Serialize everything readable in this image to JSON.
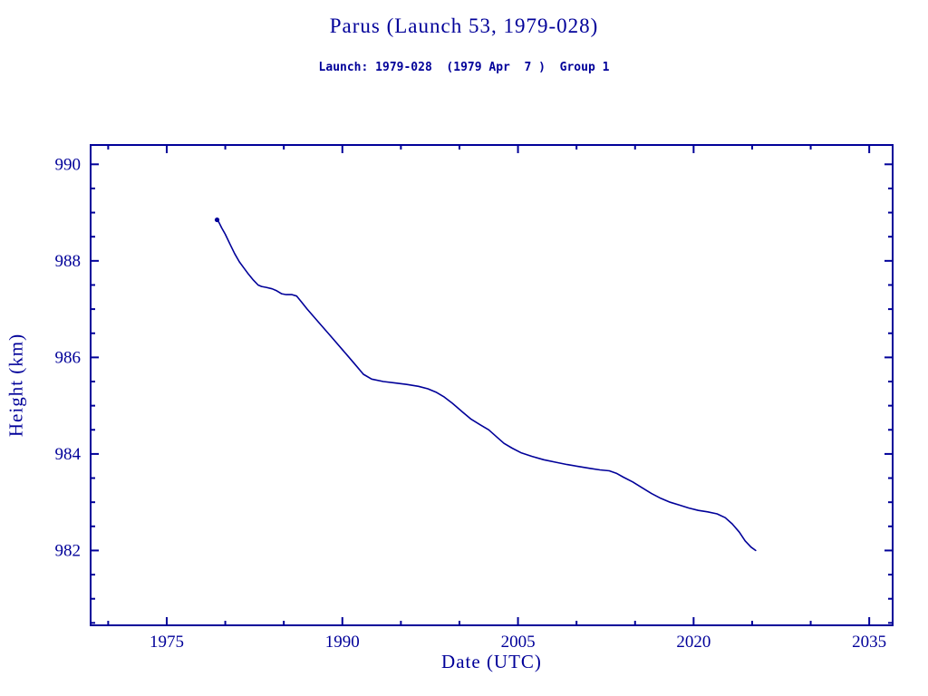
{
  "colors": {
    "ink": "#000099",
    "line": "#000099",
    "background": "#ffffff"
  },
  "chart_data": {
    "type": "line",
    "title": "Parus (Launch 53, 1979-028)",
    "subtitle": "Launch: 1979-028  (1979 Apr  7 )  Group 1",
    "xlabel": "Date (UTC)",
    "ylabel": "Height (km)",
    "xlim": [
      1968.5,
      2037
    ],
    "ylim": [
      980.45,
      990.4
    ],
    "xticks": [
      1975,
      1990,
      2005,
      2020,
      2035
    ],
    "yticks": [
      982,
      984,
      986,
      988,
      990
    ],
    "x_minor_step": 5,
    "y_minor_step": 0.5,
    "grid": false,
    "legend": false,
    "series": [
      {
        "name": "orbit-height",
        "x": [
          1979.3,
          1979.45,
          1979.7,
          1980.0,
          1980.4,
          1980.8,
          1981.2,
          1981.6,
          1982.0,
          1982.4,
          1982.8,
          1983.1,
          1983.5,
          1984.0,
          1984.4,
          1984.8,
          1985.2,
          1985.7,
          1986.1,
          1986.5,
          1987.0,
          1988.0,
          1989.0,
          1990.0,
          1991.0,
          1991.8,
          1992.5,
          1993.5,
          1994.5,
          1995.5,
          1996.5,
          1997.3,
          1998.0,
          1998.7,
          1999.4,
          2000.2,
          2001.0,
          2001.8,
          2002.5,
          2003.2,
          2003.8,
          2004.5,
          2005.3,
          2006.2,
          2007.2,
          2008.2,
          2009.2,
          2010.2,
          2011.2,
          2012.0,
          2012.8,
          2013.4,
          2014.0,
          2014.8,
          2015.6,
          2016.4,
          2017.2,
          2018.0,
          2018.8,
          2019.6,
          2020.4,
          2021.2,
          2022.0,
          2022.7,
          2023.3,
          2023.9,
          2024.4,
          2024.9,
          2025.3
        ],
        "y": [
          988.85,
          988.8,
          988.68,
          988.55,
          988.35,
          988.15,
          987.98,
          987.85,
          987.72,
          987.6,
          987.5,
          987.47,
          987.45,
          987.42,
          987.38,
          987.32,
          987.3,
          987.3,
          987.27,
          987.15,
          987.0,
          986.72,
          986.44,
          986.16,
          985.88,
          985.65,
          985.55,
          985.5,
          985.47,
          985.44,
          985.4,
          985.35,
          985.28,
          985.18,
          985.05,
          984.88,
          984.72,
          984.6,
          984.5,
          984.35,
          984.22,
          984.12,
          984.02,
          983.95,
          983.88,
          983.83,
          983.78,
          983.74,
          983.7,
          983.67,
          983.65,
          983.6,
          983.52,
          983.42,
          983.3,
          983.18,
          983.08,
          983.0,
          982.94,
          982.88,
          982.83,
          982.8,
          982.76,
          982.68,
          982.55,
          982.38,
          982.2,
          982.07,
          982.0
        ]
      }
    ]
  }
}
